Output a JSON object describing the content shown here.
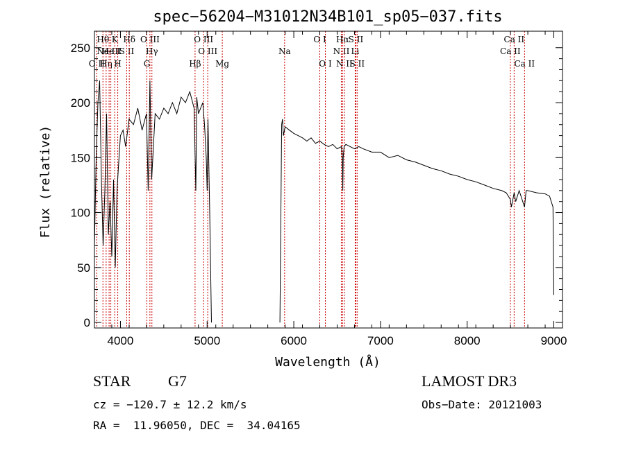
{
  "chart_data": {
    "type": "line",
    "title": "spec−56204−M31012N34B101_sp05−037.fits",
    "xlabel": "Wavelength (Å)",
    "ylabel": "Flux (relative)",
    "xlim": [
      3700,
      9100
    ],
    "ylim": [
      -5,
      265
    ],
    "xticks": [
      4000,
      5000,
      6000,
      7000,
      8000,
      9000
    ],
    "yticks": [
      0,
      50,
      100,
      150,
      200,
      250
    ],
    "gap": [
      5050,
      5840
    ],
    "series": [
      {
        "name": "flux",
        "x": [
          3700,
          3720,
          3740,
          3760,
          3780,
          3800,
          3820,
          3840,
          3860,
          3880,
          3900,
          3920,
          3940,
          3960,
          3980,
          4000,
          4030,
          4060,
          4100,
          4150,
          4200,
          4250,
          4300,
          4320,
          4340,
          4360,
          4400,
          4450,
          4500,
          4550,
          4600,
          4650,
          4700,
          4750,
          4800,
          4850,
          4870,
          4880,
          4900,
          4950,
          4970,
          4990,
          5000,
          5010,
          5030,
          5050,
          5840,
          5860,
          5870,
          5880,
          5900,
          5950,
          6000,
          6050,
          6100,
          6150,
          6200,
          6250,
          6300,
          6350,
          6400,
          6450,
          6500,
          6550,
          6560,
          6565,
          6570,
          6580,
          6600,
          6650,
          6700,
          6750,
          6800,
          6900,
          7000,
          7100,
          7200,
          7300,
          7400,
          7500,
          7600,
          7700,
          7800,
          7900,
          8000,
          8100,
          8200,
          8300,
          8400,
          8450,
          8498,
          8510,
          8542,
          8560,
          8600,
          8662,
          8680,
          8700,
          8800,
          8900,
          8950,
          8990,
          9000
        ],
        "y": [
          70,
          150,
          200,
          220,
          130,
          70,
          120,
          190,
          80,
          110,
          60,
          130,
          50,
          120,
          145,
          170,
          175,
          160,
          185,
          180,
          195,
          175,
          190,
          120,
          220,
          130,
          190,
          185,
          195,
          190,
          200,
          190,
          205,
          200,
          210,
          195,
          120,
          205,
          190,
          200,
          180,
          150,
          120,
          185,
          100,
          0,
          0,
          180,
          185,
          170,
          178,
          175,
          172,
          170,
          168,
          165,
          168,
          163,
          165,
          162,
          160,
          162,
          158,
          160,
          150,
          120,
          150,
          160,
          162,
          160,
          158,
          160,
          158,
          155,
          155,
          150,
          152,
          148,
          146,
          143,
          140,
          138,
          135,
          133,
          130,
          128,
          125,
          122,
          120,
          118,
          112,
          105,
          118,
          110,
          120,
          105,
          120,
          120,
          118,
          117,
          115,
          105,
          25
        ]
      }
    ],
    "lines": [
      {
        "label": "Hθ",
        "wave": 3798,
        "row": 1
      },
      {
        "label": "Hη",
        "wave": 3835,
        "row": 3
      },
      {
        "label": "O II",
        "wave": 3727,
        "row": 3
      },
      {
        "label": "Ne III",
        "wave": 3869,
        "row": 2
      },
      {
        "label": "He I",
        "wave": 3889,
        "row": 2
      },
      {
        "label": "K",
        "wave": 3934,
        "row": 1
      },
      {
        "label": "H",
        "wave": 3969,
        "row": 3
      },
      {
        "label": "S II",
        "wave": 4072,
        "row": 2
      },
      {
        "label": "Hδ",
        "wave": 4102,
        "row": 1
      },
      {
        "label": "G",
        "wave": 4305,
        "row": 3
      },
      {
        "label": "O III",
        "wave": 4340,
        "row": 1
      },
      {
        "label": "Hγ",
        "wave": 4363,
        "row": 2
      },
      {
        "label": "Hβ",
        "wave": 4861,
        "row": 3
      },
      {
        "label": "O III",
        "wave": 4959,
        "row": 1
      },
      {
        "label": "O III",
        "wave": 5007,
        "row": 2
      },
      {
        "label": "Mg",
        "wave": 5175,
        "row": 3
      },
      {
        "label": "Na",
        "wave": 5894,
        "row": 2
      },
      {
        "label": "O I",
        "wave": 6300,
        "row": 1
      },
      {
        "label": "O I",
        "wave": 6364,
        "row": 3
      },
      {
        "label": "N II",
        "wave": 6548,
        "row": 2
      },
      {
        "label": "N II",
        "wave": 6583,
        "row": 3
      },
      {
        "label": "Hα",
        "wave": 6563,
        "row": 1
      },
      {
        "label": "S II",
        "wave": 6716,
        "row": 1
      },
      {
        "label": "Li",
        "wave": 6708,
        "row": 2
      },
      {
        "label": "S II",
        "wave": 6731,
        "row": 3
      },
      {
        "label": "Ca II",
        "wave": 8498,
        "row": 2
      },
      {
        "label": "Ca II",
        "wave": 8542,
        "row": 1
      },
      {
        "label": "Ca II",
        "wave": 8662,
        "row": 3
      }
    ]
  },
  "info": {
    "class": "STAR",
    "subclass": "G7",
    "survey": "LAMOST DR3",
    "cz": "cz = −120.7 ± 12.2 km/s",
    "obs_date": "Obs−Date: 20121003",
    "radec": "RA =  11.96050, DEC =  34.04165"
  }
}
